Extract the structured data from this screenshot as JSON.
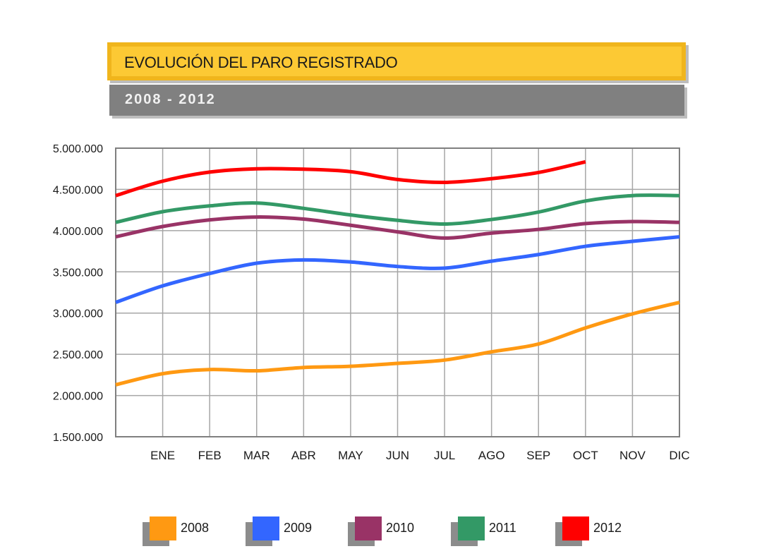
{
  "header": {
    "title": "EVOLUCIÓN DEL PARO REGISTRADO",
    "subtitle": "2008 - 2012"
  },
  "chart_data": {
    "type": "line",
    "title": "EVOLUCIÓN DEL PARO REGISTRADO",
    "subtitle": "2008 - 2012",
    "xlabel": "",
    "ylabel": "",
    "categories": [
      "",
      "ENE",
      "FEB",
      "MAR",
      "ABR",
      "MAY",
      "JUN",
      "JUL",
      "AGO",
      "SEP",
      "OCT",
      "NOV",
      "DIC"
    ],
    "ylim": [
      1500000,
      5000000
    ],
    "yticks": [
      1500000,
      2000000,
      2500000,
      3000000,
      3500000,
      4000000,
      4500000,
      5000000
    ],
    "ytick_labels": [
      "1.500.000",
      "2.000.000",
      "2.500.000",
      "3.000.000",
      "3.500.000",
      "4.000.000",
      "4.500.000",
      "5.000.000"
    ],
    "grid": true,
    "legend_position": "bottom",
    "series": [
      {
        "name": "2008",
        "color": "#ff9912",
        "values": [
          2130000,
          2265000,
          2315000,
          2300000,
          2340000,
          2355000,
          2390000,
          2430000,
          2530000,
          2625000,
          2820000,
          2990000,
          3130000
        ]
      },
      {
        "name": "2009",
        "color": "#3366ff",
        "values": [
          3130000,
          3330000,
          3480000,
          3605000,
          3645000,
          3620000,
          3565000,
          3545000,
          3630000,
          3710000,
          3810000,
          3870000,
          3925000
        ]
      },
      {
        "name": "2010",
        "color": "#993366",
        "values": [
          3925000,
          4050000,
          4130000,
          4165000,
          4140000,
          4065000,
          3985000,
          3910000,
          3970000,
          4015000,
          4085000,
          4110000,
          4100000
        ]
      },
      {
        "name": "2011",
        "color": "#339966",
        "values": [
          4100000,
          4230000,
          4300000,
          4335000,
          4270000,
          4190000,
          4125000,
          4080000,
          4135000,
          4225000,
          4360000,
          4425000,
          4425000
        ]
      },
      {
        "name": "2012",
        "color": "#ff0000",
        "values": [
          4425000,
          4600000,
          4710000,
          4750000,
          4745000,
          4715000,
          4620000,
          4585000,
          4630000,
          4705000,
          4835000,
          null,
          null
        ]
      }
    ]
  }
}
